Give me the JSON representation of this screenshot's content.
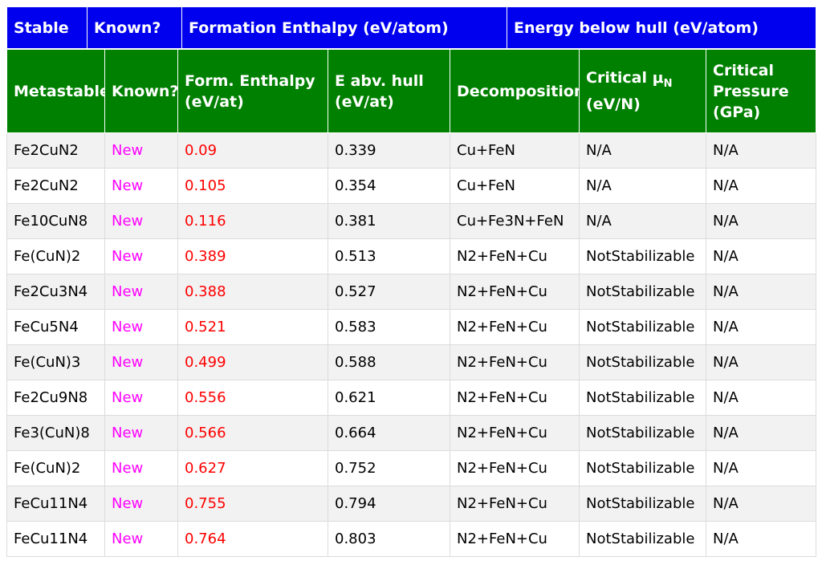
{
  "stable_header": {
    "stable": "Stable",
    "known": "Known?",
    "formation_enthalpy": "Formation Enthalpy (eV/atom)",
    "energy_below_hull": "Energy below hull (eV/atom)"
  },
  "meta_header": {
    "metastable": "Metastable",
    "known": "Known?",
    "form_enthalpy_line1": "Form. Enthalpy",
    "form_enthalpy_line2": "(eV/at)",
    "e_abv_hull_line1": "E abv. hull",
    "e_abv_hull_line2": "(eV/at)",
    "decomposition": "Decomposition",
    "critical_mu_prefix": "Critical μ",
    "critical_mu_sub": "N",
    "critical_mu_unit": "(eV/N)",
    "critical_pressure_line1": "Critical",
    "critical_pressure_line2": "Pressure",
    "critical_pressure_line3": "(GPa)"
  },
  "rows": [
    {
      "compound": "Fe2CuN2",
      "known": "New",
      "enthalpy": "0.09",
      "hull": "0.339",
      "decomp": "Cu+FeN",
      "mu": "N/A",
      "pressure": "N/A"
    },
    {
      "compound": "Fe2CuN2",
      "known": "New",
      "enthalpy": "0.105",
      "hull": "0.354",
      "decomp": "Cu+FeN",
      "mu": "N/A",
      "pressure": "N/A"
    },
    {
      "compound": "Fe10CuN8",
      "known": "New",
      "enthalpy": "0.116",
      "hull": "0.381",
      "decomp": "Cu+Fe3N+FeN",
      "mu": "N/A",
      "pressure": "N/A"
    },
    {
      "compound": "Fe(CuN)2",
      "known": "New",
      "enthalpy": "0.389",
      "hull": "0.513",
      "decomp": "N2+FeN+Cu",
      "mu": "NotStabilizable",
      "pressure": "N/A"
    },
    {
      "compound": "Fe2Cu3N4",
      "known": "New",
      "enthalpy": "0.388",
      "hull": "0.527",
      "decomp": "N2+FeN+Cu",
      "mu": "NotStabilizable",
      "pressure": "N/A"
    },
    {
      "compound": "FeCu5N4",
      "known": "New",
      "enthalpy": "0.521",
      "hull": "0.583",
      "decomp": "N2+FeN+Cu",
      "mu": "NotStabilizable",
      "pressure": "N/A"
    },
    {
      "compound": "Fe(CuN)3",
      "known": "New",
      "enthalpy": "0.499",
      "hull": "0.588",
      "decomp": "N2+FeN+Cu",
      "mu": "NotStabilizable",
      "pressure": "N/A"
    },
    {
      "compound": "Fe2Cu9N8",
      "known": "New",
      "enthalpy": "0.556",
      "hull": "0.621",
      "decomp": "N2+FeN+Cu",
      "mu": "NotStabilizable",
      "pressure": "N/A"
    },
    {
      "compound": "Fe3(CuN)8",
      "known": "New",
      "enthalpy": "0.566",
      "hull": "0.664",
      "decomp": "N2+FeN+Cu",
      "mu": "NotStabilizable",
      "pressure": "N/A"
    },
    {
      "compound": "Fe(CuN)2",
      "known": "New",
      "enthalpy": "0.627",
      "hull": "0.752",
      "decomp": "N2+FeN+Cu",
      "mu": "NotStabilizable",
      "pressure": "N/A"
    },
    {
      "compound": "FeCu11N4",
      "known": "New",
      "enthalpy": "0.755",
      "hull": "0.794",
      "decomp": "N2+FeN+Cu",
      "mu": "NotStabilizable",
      "pressure": "N/A"
    },
    {
      "compound": "FeCu11N4",
      "known": "New",
      "enthalpy": "0.764",
      "hull": "0.803",
      "decomp": "N2+FeN+Cu",
      "mu": "NotStabilizable",
      "pressure": "N/A"
    }
  ],
  "colors": {
    "stable_header_bg": "#0000ee",
    "meta_header_bg": "#008000",
    "new_text": "#ff00ff",
    "enthalpy_text": "#ff0000"
  }
}
